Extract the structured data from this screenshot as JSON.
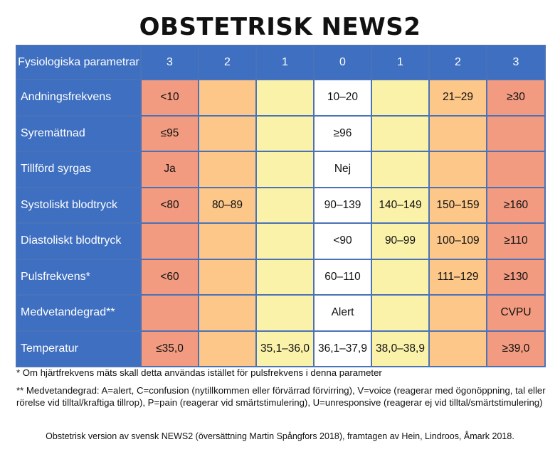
{
  "title": "OBSTETRISK NEWS2",
  "table": {
    "param_header": "Fysiologiska parametrar",
    "score_headers": [
      "3",
      "2",
      "1",
      "0",
      "1",
      "2",
      "3"
    ],
    "rows": [
      {
        "parameter": "Andningsfrekvens",
        "cells": [
          "<10",
          "",
          "",
          "10–20",
          "",
          "21–29",
          "≥30"
        ]
      },
      {
        "parameter": "Syremättnad",
        "cells": [
          "≤95",
          "",
          "",
          "≥96",
          "",
          "",
          ""
        ]
      },
      {
        "parameter": "Tillförd syrgas",
        "cells": [
          "Ja",
          "",
          "",
          "Nej",
          "",
          "",
          ""
        ]
      },
      {
        "parameter": "Systoliskt blodtryck",
        "cells": [
          "<80",
          "80–89",
          "",
          "90–139",
          "140–149",
          "150–159",
          "≥160"
        ]
      },
      {
        "parameter": "Diastoliskt blodtryck",
        "cells": [
          "",
          "",
          "",
          "<90",
          "90–99",
          "100–109",
          "≥110"
        ]
      },
      {
        "parameter": "Pulsfrekvens*",
        "cells": [
          "<60",
          "",
          "",
          "60–110",
          "",
          "111–129",
          "≥130"
        ]
      },
      {
        "parameter": "Medvetandegrad**",
        "cells": [
          "",
          "",
          "",
          "Alert",
          "",
          "",
          "CVPU"
        ]
      },
      {
        "parameter": "Temperatur",
        "cells": [
          "≤35,0",
          "",
          "35,1–36,0",
          "36,1–37,9",
          "38,0–38,9",
          "",
          "≥39,0"
        ]
      }
    ]
  },
  "colors": {
    "header_blue": "#3f6fc0",
    "score_3": "#f29b80",
    "score_2": "#fcc788",
    "score_1": "#fbf2a9",
    "score_0": "#ffffff"
  },
  "notes": {
    "note1": "* Om hjärtfrekvens mäts skall detta användas istället för pulsfrekvens i denna parameter",
    "note2": "** Medvetandegrad: A=alert, C=confusion (nytillkommen eller förvärrad förvirring), V=voice (reagerar med ögonöppning, tal eller rörelse vid tilltal/kraftiga tillrop), P=pain (reagerar vid smärtstimulering), U=unresponsive (reagerar ej vid tilltal/smärtstimulering)"
  },
  "source": "Obstetrisk version av svensk NEWS2 (översättning Martin Spångfors 2018), framtagen av Hein, Lindroos, Åmark 2018."
}
